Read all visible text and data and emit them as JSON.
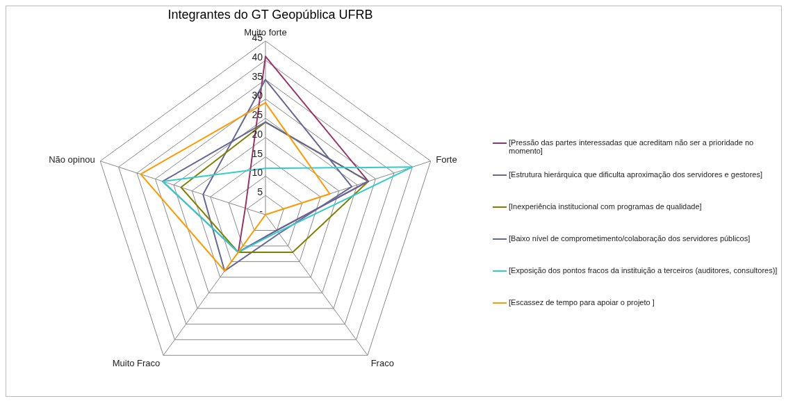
{
  "chart_data": {
    "type": "radar",
    "title": "Integrantes do GT Geopública UFRB",
    "categories": [
      "Muito forte",
      "Forte",
      "Fraco",
      "Muito Fraco",
      "Não opinou"
    ],
    "series": [
      {
        "name": "[Pressão das partes interessadas que acreditam não ser a prioridade no momento]",
        "color": "#993366",
        "values": [
          41,
          28,
          5,
          12,
          5.5
        ]
      },
      {
        "name": "[Estrutura hierárquica que dificulta aproximação dos servidores e gestores]",
        "color": "#666699",
        "values": [
          35,
          23.5,
          6,
          18,
          17
        ]
      },
      {
        "name": "[Inexperiência institucional com programas de qualidade]",
        "color": "#808000",
        "values": [
          24,
          28,
          12,
          12,
          23
        ]
      },
      {
        "name": "[Baixo nível de comprometimento/colaboração dos servidores públicos]",
        "color": "#666699",
        "values": [
          24,
          28,
          5,
          12,
          28
        ]
      },
      {
        "name": "[Exposição dos pontos fracos da instituição a terceiros (auditores, consultores)]",
        "color": "#33cccc",
        "values": [
          12,
          40,
          5.5,
          12,
          28
        ]
      },
      {
        "name": "[Escassez de tempo para apoiar o projeto ]",
        "color": "#ff9900",
        "values": [
          29,
          17.5,
          0,
          18,
          34
        ]
      }
    ],
    "ylim": [
      0,
      45
    ],
    "yticks": [
      {
        "value": 0,
        "label": "-"
      },
      5,
      10,
      15,
      20,
      25,
      30,
      35,
      40,
      45
    ],
    "grid": true,
    "legend": "right",
    "marker": "none",
    "line_style": "solid"
  }
}
